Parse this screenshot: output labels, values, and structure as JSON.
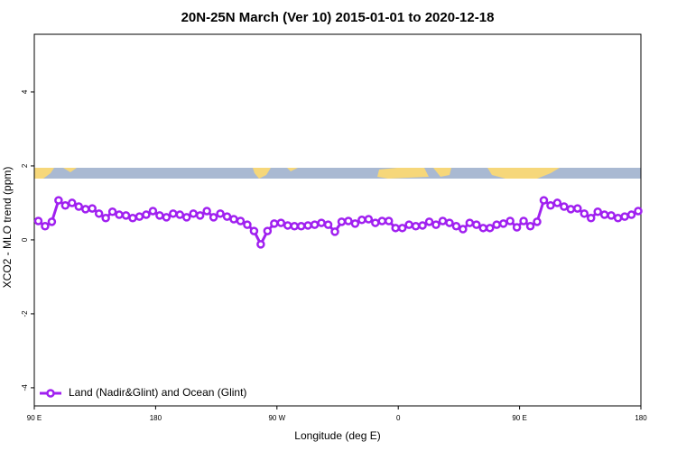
{
  "chart_data": {
    "type": "line",
    "title": "20N-25N March (Ver 10)   2015-01-01 to 2020-12-18",
    "xlabel": "Longitude (deg E)",
    "ylabel": "XCO2 - MLO trend (ppm)",
    "xlim": [
      90,
      540
    ],
    "ylim": [
      -4.49,
      5.56
    ],
    "xticks": [
      {
        "value": 90,
        "label": "90 E"
      },
      {
        "value": 180,
        "label": "180"
      },
      {
        "value": 270,
        "label": "90 W"
      },
      {
        "value": 360,
        "label": "0"
      },
      {
        "value": 450,
        "label": "90 E"
      },
      {
        "value": 540,
        "label": "180"
      }
    ],
    "yticks": [
      4,
      2,
      0,
      -2,
      -4
    ],
    "legend": "bottom-left",
    "x": [
      93,
      98,
      103,
      108,
      113,
      118,
      123,
      128,
      133,
      138,
      143,
      148,
      153,
      158,
      163,
      168,
      173,
      178,
      183,
      188,
      193,
      198,
      203,
      208,
      213,
      218,
      223,
      228,
      233,
      238,
      243,
      248,
      253,
      258,
      263,
      268,
      273,
      278,
      283,
      288,
      293,
      298,
      303,
      308,
      313,
      318,
      323,
      328,
      333,
      338,
      343,
      348,
      353,
      358,
      363,
      368,
      373,
      378,
      383,
      388,
      393,
      398,
      403,
      408,
      413,
      418,
      423,
      428,
      433,
      438,
      443,
      448,
      453,
      458,
      463,
      468,
      473,
      478,
      483,
      488,
      493,
      498,
      503,
      508,
      513,
      518,
      523,
      528,
      533,
      538
    ],
    "series": [
      {
        "name": "Land (Nadir&Glint) and Ocean (Glint)",
        "color": "#a020f0",
        "values": [
          0.51,
          0.37,
          0.49,
          1.07,
          0.93,
          1.0,
          0.9,
          0.83,
          0.85,
          0.71,
          0.59,
          0.76,
          0.68,
          0.66,
          0.59,
          0.63,
          0.68,
          0.78,
          0.66,
          0.61,
          0.71,
          0.68,
          0.61,
          0.71,
          0.66,
          0.78,
          0.61,
          0.71,
          0.63,
          0.56,
          0.51,
          0.41,
          0.24,
          -0.12,
          0.24,
          0.44,
          0.46,
          0.39,
          0.37,
          0.37,
          0.39,
          0.41,
          0.46,
          0.41,
          0.22,
          0.49,
          0.51,
          0.44,
          0.54,
          0.56,
          0.46,
          0.51,
          0.51,
          0.32,
          0.32,
          0.41,
          0.37,
          0.39,
          0.49,
          0.41,
          0.51,
          0.46,
          0.37,
          0.29,
          0.46,
          0.41,
          0.32,
          0.32,
          0.41,
          0.44,
          0.51,
          0.34,
          0.51,
          0.37,
          0.49,
          1.07,
          0.93,
          1.0,
          0.9,
          0.83,
          0.85,
          0.71,
          0.59,
          0.76,
          0.68,
          0.66,
          0.59,
          0.63,
          0.68,
          0.78
        ]
      }
    ]
  }
}
